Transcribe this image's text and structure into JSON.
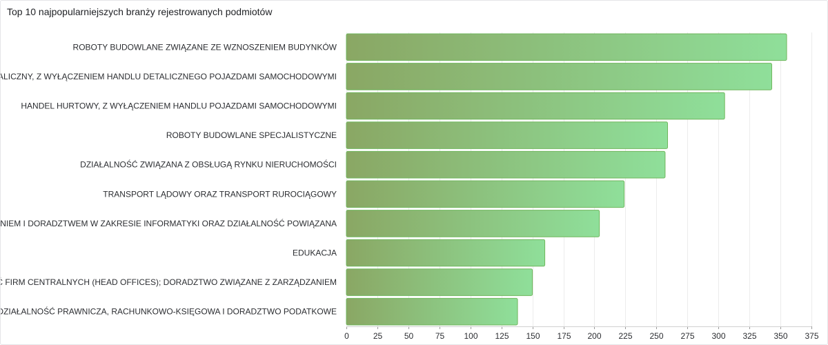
{
  "panel": {
    "title": "Top 10 najpopularniejszych branży rejestrowanych podmiotów"
  },
  "colors": {
    "bar_start": "#8aa764",
    "bar_end": "#8fdf9a",
    "bar_border": "#6fb65c"
  },
  "chart_data": {
    "type": "bar",
    "orientation": "horizontal",
    "title": "Top 10 najpopularniejszych branży rejestrowanych podmiotów",
    "xlabel": "",
    "ylabel": "",
    "xlim": [
      0,
      375
    ],
    "x_ticks": [
      0,
      25,
      50,
      75,
      100,
      125,
      150,
      175,
      200,
      225,
      250,
      275,
      300,
      325,
      350,
      375
    ],
    "grid": true,
    "legend": "none",
    "categories": [
      "ROBOTY BUDOWLANE ZWIĄZANE ZE WZNOSZENIEM BUDYNKÓW",
      "HANDEL DETALICZNY, Z WYŁĄCZENIEM HANDLU DETALICZNEGO POJAZDAMI SAMOCHODOWYMI",
      "HANDEL HURTOWY, Z WYŁĄCZENIEM HANDLU POJAZDAMI SAMOCHODOWYMI",
      "ROBOTY BUDOWLANE SPECJALISTYCZNE",
      "DZIAŁALNOŚĆ ZWIĄZANA Z OBSŁUGĄ RYNKU NIERUCHOMOŚCI",
      "TRANSPORT LĄDOWY ORAZ TRANSPORT RUROCIĄGOWY",
      "DZIAŁALNOŚĆ ZWIĄZANA Z OPROGRAMOWANIEM I DORADZTWEM W ZAKRESIE INFORMATYKI ORAZ DZIAŁALNOŚĆ POWIĄZANA",
      "EDUKACJA",
      "DZIAŁALNOŚĆ FIRM CENTRALNYCH (HEAD OFFICES); DORADZTWO ZWIĄZANE Z ZARZĄDZANIEM",
      "DZIAŁALNOŚĆ PRAWNICZA, RACHUNKOWO-KSIĘGOWA I DORADZTWO PODATKOWE"
    ],
    "values": [
      355,
      343,
      305,
      259,
      257,
      224,
      204,
      160,
      150,
      138
    ]
  }
}
